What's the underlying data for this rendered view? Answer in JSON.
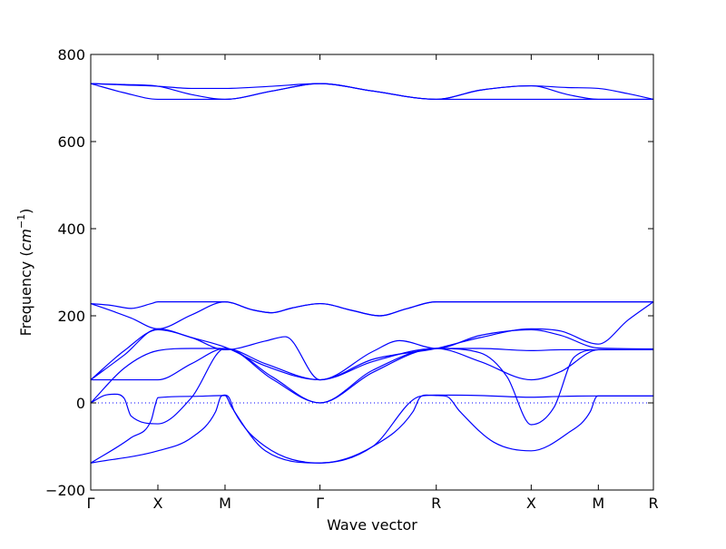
{
  "chart_data": {
    "type": "line",
    "xlabel": "Wave vector",
    "ylabel_text": "Frequency (",
    "ylabel_unit_base": "cm",
    "ylabel_unit_exp": "−1",
    "ylabel_close": ")",
    "ylim": [
      -200,
      800
    ],
    "yticks": [
      -200,
      0,
      200,
      400,
      600,
      800
    ],
    "ytick_labels": [
      "−200",
      "0",
      "200",
      "400",
      "600",
      "800"
    ],
    "grid": false,
    "zero_line": "dotted",
    "line_color": "#0000ff",
    "high_symmetry_points": [
      {
        "label": "Γ",
        "x": 0
      },
      {
        "label": "X",
        "x": 0.5
      },
      {
        "label": "M",
        "x": 1.0
      },
      {
        "label": "Γ",
        "x": 1.707
      },
      {
        "label": "R",
        "x": 2.573
      },
      {
        "label": "X",
        "x": 3.28
      },
      {
        "label": "M",
        "x": 3.78
      },
      {
        "label": "R",
        "x": 4.19
      }
    ],
    "series": [
      {
        "points": [
          [
            0,
            733
          ],
          [
            0.25,
            730
          ],
          [
            0.5,
            727
          ],
          [
            0.75,
            722
          ],
          [
            1.0,
            722
          ],
          [
            1.35,
            727
          ],
          [
            1.707,
            733
          ],
          [
            2.1,
            716
          ],
          [
            2.573,
            697
          ],
          [
            2.9,
            718
          ],
          [
            3.28,
            728
          ],
          [
            3.55,
            724
          ],
          [
            3.78,
            722
          ],
          [
            4.0,
            710
          ],
          [
            4.19,
            697
          ]
        ]
      },
      {
        "points": [
          [
            0,
            733
          ],
          [
            0.25,
            731
          ],
          [
            0.5,
            727
          ],
          [
            0.75,
            708
          ],
          [
            1.0,
            697
          ],
          [
            1.35,
            716
          ],
          [
            1.707,
            733
          ],
          [
            2.1,
            716
          ],
          [
            2.573,
            697
          ],
          [
            2.9,
            718
          ],
          [
            3.28,
            728
          ],
          [
            3.55,
            708
          ],
          [
            3.78,
            697
          ],
          [
            4.0,
            697
          ],
          [
            4.19,
            697
          ]
        ]
      },
      {
        "points": [
          [
            0,
            733
          ],
          [
            0.25,
            712
          ],
          [
            0.5,
            697
          ],
          [
            0.75,
            697
          ],
          [
            1.0,
            697
          ],
          [
            1.35,
            716
          ],
          [
            1.707,
            733
          ],
          [
            2.1,
            716
          ],
          [
            2.573,
            697
          ],
          [
            2.9,
            697
          ],
          [
            3.28,
            697
          ],
          [
            3.55,
            697
          ],
          [
            3.78,
            697
          ],
          [
            4.0,
            697
          ],
          [
            4.19,
            697
          ]
        ]
      },
      {
        "points": [
          [
            0,
            228
          ],
          [
            0.15,
            224
          ],
          [
            0.3,
            217
          ],
          [
            0.45,
            228
          ],
          [
            0.5,
            232
          ],
          [
            0.75,
            232
          ],
          [
            1.0,
            232
          ],
          [
            1.2,
            214
          ],
          [
            1.35,
            207
          ],
          [
            1.5,
            218
          ],
          [
            1.707,
            228
          ],
          [
            1.95,
            212
          ],
          [
            2.15,
            200
          ],
          [
            2.35,
            216
          ],
          [
            2.573,
            232
          ],
          [
            2.9,
            232
          ],
          [
            3.28,
            232
          ],
          [
            3.55,
            232
          ],
          [
            3.78,
            232
          ],
          [
            4.19,
            232
          ]
        ]
      },
      {
        "points": [
          [
            0,
            228
          ],
          [
            0.15,
            212
          ],
          [
            0.3,
            195
          ],
          [
            0.5,
            170
          ],
          [
            0.75,
            202
          ],
          [
            1.0,
            232
          ],
          [
            1.2,
            214
          ],
          [
            1.35,
            207
          ],
          [
            1.5,
            218
          ],
          [
            1.707,
            228
          ],
          [
            1.95,
            212
          ],
          [
            2.15,
            200
          ],
          [
            2.35,
            216
          ],
          [
            2.573,
            232
          ],
          [
            2.9,
            232
          ],
          [
            3.28,
            232
          ],
          [
            3.5,
            232
          ],
          [
            3.78,
            232
          ],
          [
            4.19,
            232
          ]
        ]
      },
      {
        "points": [
          [
            0,
            53
          ],
          [
            0.25,
            110
          ],
          [
            0.5,
            170
          ],
          [
            0.75,
            150
          ],
          [
            1.0,
            128
          ],
          [
            1.3,
            85
          ],
          [
            1.707,
            53
          ],
          [
            2.1,
            100
          ],
          [
            2.573,
            125
          ],
          [
            2.9,
            150
          ],
          [
            3.28,
            170
          ],
          [
            3.5,
            165
          ],
          [
            3.78,
            135
          ],
          [
            4.0,
            190
          ],
          [
            4.19,
            232
          ]
        ]
      },
      {
        "points": [
          [
            0,
            53
          ],
          [
            0.25,
            120
          ],
          [
            0.5,
            168
          ],
          [
            0.75,
            150
          ],
          [
            1.0,
            122
          ],
          [
            1.3,
            142
          ],
          [
            1.45,
            152
          ],
          [
            1.707,
            53
          ],
          [
            2.1,
            118
          ],
          [
            2.3,
            143
          ],
          [
            2.573,
            125
          ],
          [
            2.9,
            155
          ],
          [
            3.28,
            168
          ],
          [
            3.5,
            155
          ],
          [
            3.78,
            126
          ],
          [
            4.19,
            124
          ]
        ]
      },
      {
        "points": [
          [
            0,
            53
          ],
          [
            0.25,
            53
          ],
          [
            0.5,
            53
          ],
          [
            0.75,
            90
          ],
          [
            1.0,
            125
          ],
          [
            1.3,
            90
          ],
          [
            1.707,
            53
          ],
          [
            2.1,
            95
          ],
          [
            2.573,
            125
          ],
          [
            2.9,
            95
          ],
          [
            3.28,
            53
          ],
          [
            3.5,
            72
          ],
          [
            3.78,
            122
          ],
          [
            4.19,
            122
          ]
        ]
      },
      {
        "points": [
          [
            0,
            0
          ],
          [
            0.25,
            80
          ],
          [
            0.5,
            120
          ],
          [
            0.75,
            125
          ],
          [
            1.0,
            125
          ],
          [
            1.35,
            60
          ],
          [
            1.707,
            0
          ],
          [
            2.1,
            70
          ],
          [
            2.573,
            125
          ],
          [
            2.9,
            125
          ],
          [
            3.28,
            120
          ],
          [
            3.5,
            122
          ],
          [
            3.78,
            122
          ],
          [
            4.19,
            122
          ]
        ]
      },
      {
        "points": [
          [
            0,
            0
          ],
          [
            0.1,
            17
          ],
          [
            0.18,
            20
          ],
          [
            0.25,
            10
          ],
          [
            0.3,
            -30
          ],
          [
            0.5,
            -48
          ],
          [
            0.75,
            12
          ],
          [
            1.0,
            125
          ],
          [
            1.35,
            55
          ],
          [
            1.707,
            0
          ],
          [
            2.1,
            75
          ],
          [
            2.573,
            125
          ],
          [
            2.9,
            115
          ],
          [
            3.1,
            60
          ],
          [
            3.28,
            -50
          ],
          [
            3.45,
            -10
          ],
          [
            3.6,
            105
          ],
          [
            3.78,
            122
          ],
          [
            4.19,
            122
          ]
        ]
      },
      {
        "points": [
          [
            0,
            -138
          ],
          [
            0.5,
            -110
          ],
          [
            0.75,
            -80
          ],
          [
            0.93,
            -20
          ],
          [
            0.97,
            15
          ],
          [
            1.0,
            18
          ],
          [
            1.03,
            12
          ],
          [
            1.07,
            -20
          ],
          [
            1.3,
            -100
          ],
          [
            1.707,
            -138
          ],
          [
            2.1,
            -100
          ],
          [
            2.4,
            -20
          ],
          [
            2.45,
            12
          ],
          [
            2.5,
            18
          ],
          [
            2.573,
            17
          ],
          [
            2.65,
            15
          ],
          [
            2.75,
            -20
          ],
          [
            3.0,
            -90
          ],
          [
            3.28,
            -110
          ],
          [
            3.55,
            -70
          ],
          [
            3.72,
            -20
          ],
          [
            3.76,
            12
          ],
          [
            3.78,
            16
          ],
          [
            4.19,
            16
          ]
        ]
      },
      {
        "points": [
          [
            0,
            -138
          ],
          [
            0.3,
            -80
          ],
          [
            0.45,
            -40
          ],
          [
            0.48,
            -5
          ],
          [
            0.5,
            12
          ],
          [
            0.75,
            15
          ],
          [
            1.0,
            17
          ],
          [
            1.05,
            -10
          ],
          [
            1.3,
            -110
          ],
          [
            1.707,
            -138
          ],
          [
            2.1,
            -100
          ],
          [
            2.45,
            15
          ],
          [
            2.573,
            18
          ],
          [
            2.9,
            17
          ],
          [
            3.28,
            13
          ],
          [
            3.5,
            15
          ],
          [
            3.78,
            16
          ],
          [
            4.19,
            16
          ]
        ]
      }
    ]
  }
}
